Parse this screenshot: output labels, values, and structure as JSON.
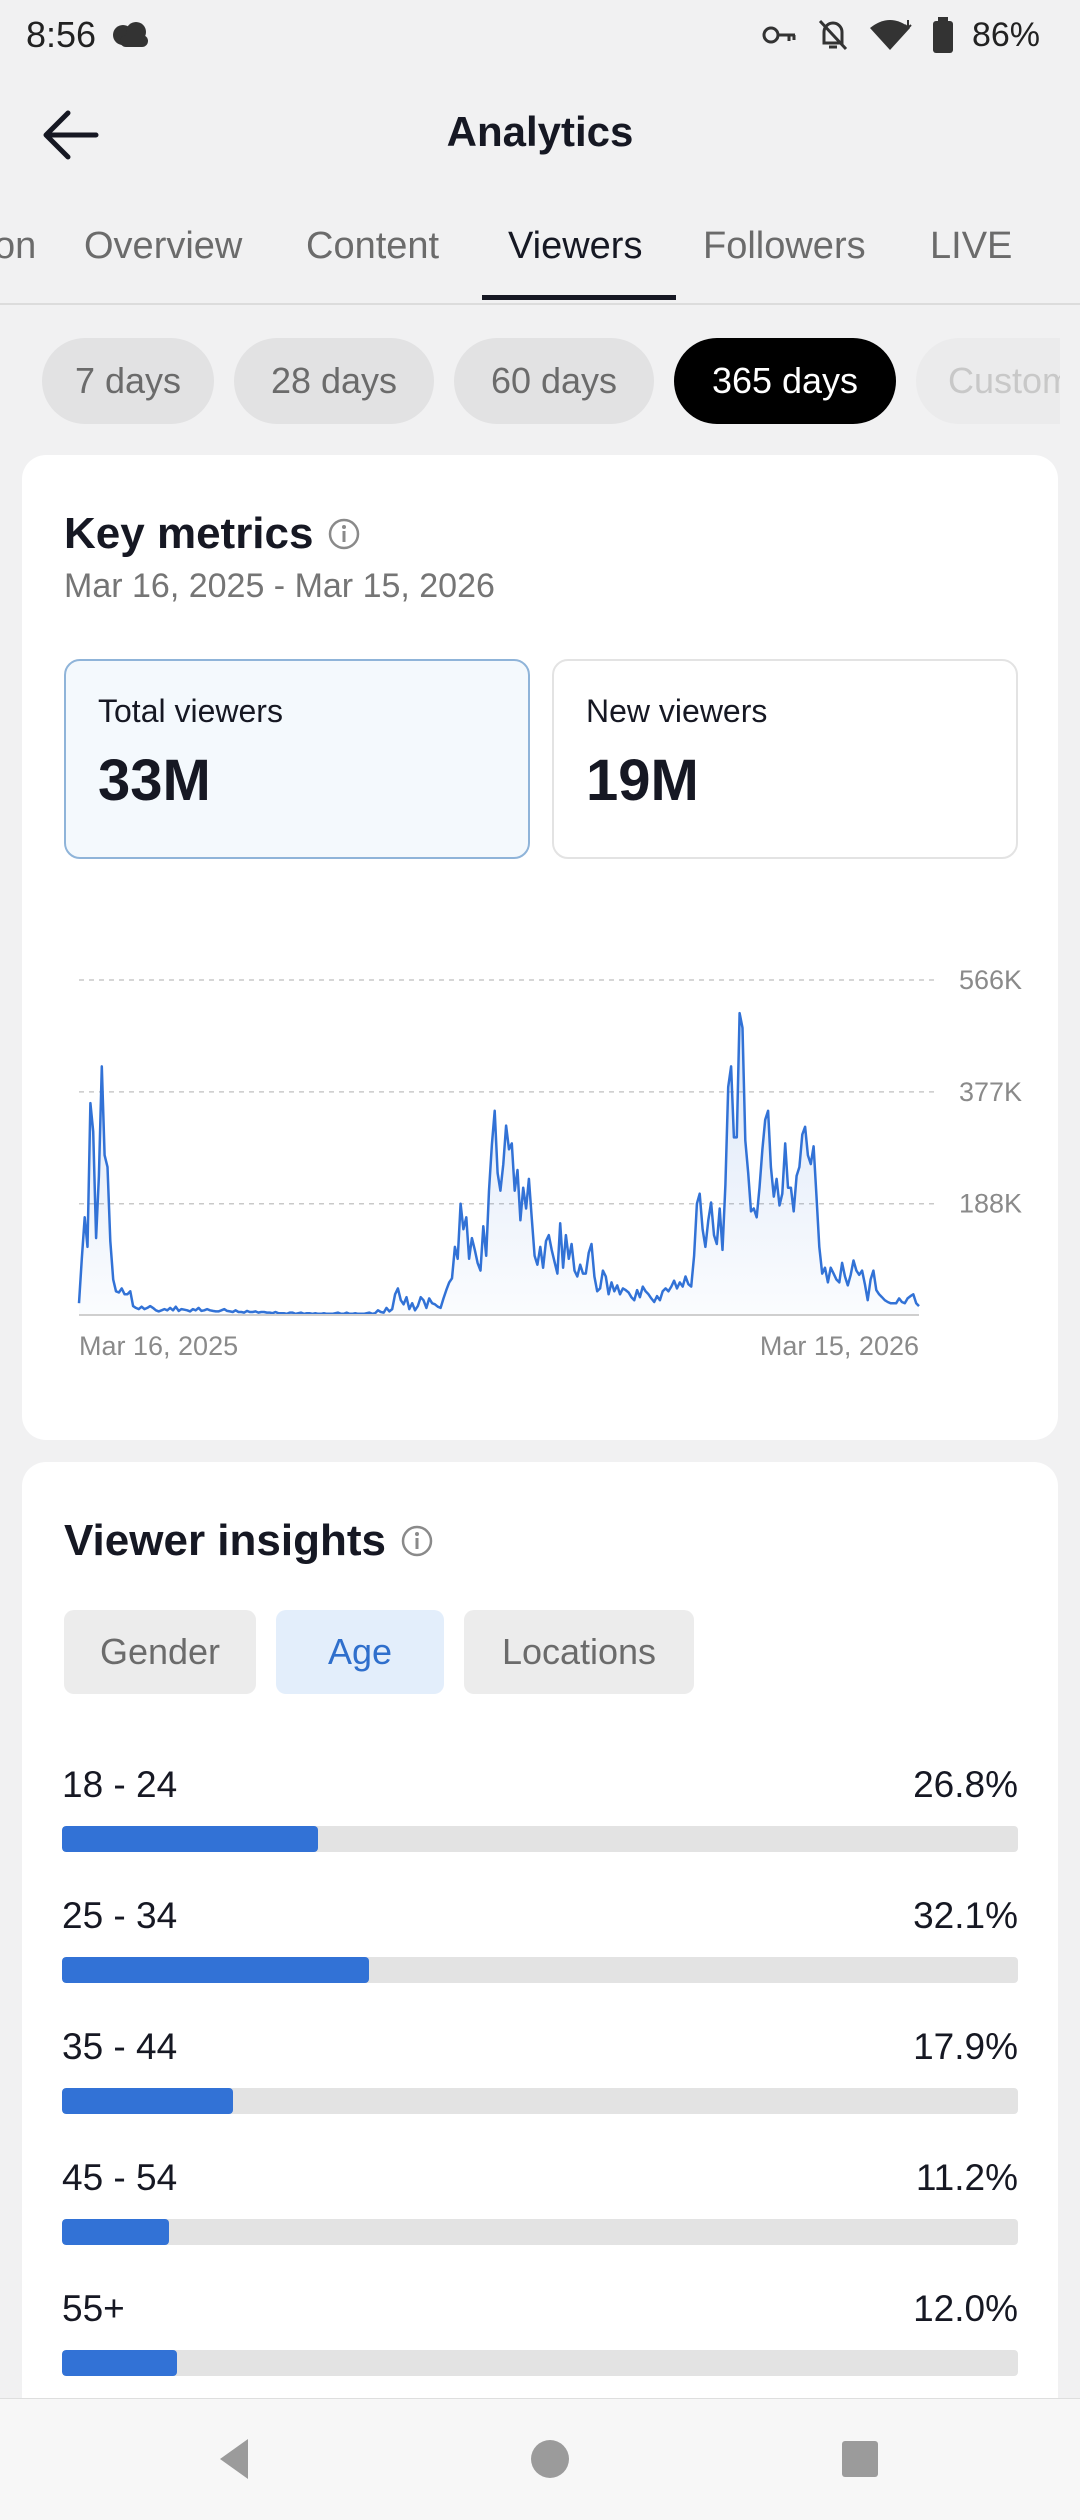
{
  "status_bar": {
    "time": "8:56",
    "battery": "86%",
    "icons": [
      "cloud-sync-icon",
      "key-icon",
      "bell-off-icon",
      "wifi-icon",
      "battery-icon"
    ]
  },
  "header": {
    "title": "Analytics",
    "back_icon": "back-arrow-icon"
  },
  "tabs": [
    {
      "label": "on"
    },
    {
      "label": "Overview"
    },
    {
      "label": "Content"
    },
    {
      "label": "Viewers",
      "active": true
    },
    {
      "label": "Followers"
    },
    {
      "label": "LIVE"
    }
  ],
  "period_chips": [
    {
      "label": "7 days"
    },
    {
      "label": "28 days"
    },
    {
      "label": "60 days"
    },
    {
      "label": "365 days",
      "active": true
    },
    {
      "label": "Custom"
    }
  ],
  "key_metrics": {
    "title": "Key metrics",
    "date_range": "Mar 16, 2025 - Mar 15, 2026",
    "total_viewers": {
      "label": "Total viewers",
      "value": "33M",
      "selected": true
    },
    "new_viewers": {
      "label": "New viewers",
      "value": "19M"
    }
  },
  "chart_data": {
    "type": "area",
    "series": [
      {
        "values": [
          20,
          95,
          165,
          115,
          358,
          310,
          130,
          235,
          420,
          270,
          250,
          125,
          60,
          40,
          38,
          45,
          35,
          35,
          40,
          15,
          12,
          10,
          14,
          10,
          12,
          15,
          12,
          8,
          6,
          8,
          10,
          8,
          12,
          8,
          14,
          7,
          10,
          9,
          8,
          6,
          10,
          8,
          12,
          7,
          8,
          10,
          8,
          7,
          6,
          6,
          8,
          10,
          7,
          6,
          5,
          8,
          5,
          5,
          4,
          7,
          5,
          5,
          6,
          4,
          5,
          5,
          4,
          4,
          3,
          5,
          3,
          3,
          3,
          2,
          4,
          4,
          2,
          3,
          4,
          2,
          3,
          3,
          2,
          3,
          2,
          2,
          3,
          2,
          2,
          2,
          3,
          4,
          2,
          2,
          4,
          2,
          2,
          3,
          2,
          2,
          2,
          3,
          4,
          2,
          3,
          8,
          5,
          4,
          12,
          6,
          10,
          35,
          45,
          25,
          18,
          30,
          10,
          20,
          8,
          15,
          30,
          25,
          12,
          28,
          20,
          18,
          14,
          12,
          28,
          42,
          55,
          62,
          115,
          95,
          188,
          145,
          165,
          95,
          130,
          110,
          88,
          75,
          150,
          100,
          210,
          288,
          345,
          240,
          210,
          255,
          320,
          280,
          290,
          210,
          245,
          160,
          215,
          180,
          230,
          165,
          100,
          85,
          115,
          80,
          125,
          135,
          110,
          90,
          70,
          155,
          80,
          135,
          95,
          120,
          75,
          65,
          85,
          70,
          70,
          105,
          120,
          65,
          40,
          45,
          75,
          65,
          35,
          55,
          40,
          50,
          35,
          45,
          42,
          38,
          30,
          25,
          42,
          30,
          48,
          40,
          35,
          28,
          22,
          32,
          25,
          40,
          45,
          40,
          48,
          58,
          45,
          55,
          48,
          65,
          52,
          48,
          100,
          188,
          205,
          145,
          115,
          160,
          190,
          135,
          120,
          180,
          110,
          220,
          385,
          420,
          300,
          300,
          510,
          485,
          295,
          240,
          175,
          180,
          165,
          215,
          280,
          330,
          345,
          250,
          200,
          230,
          185,
          205,
          290,
          215,
          215,
          175,
          235,
          250,
          305,
          318,
          270,
          255,
          285,
          200,
          115,
          70,
          80,
          55,
          80,
          70,
          60,
          55,
          88,
          65,
          50,
          68,
          92,
          75,
          68,
          75,
          52,
          25,
          60,
          75,
          42,
          35,
          30,
          25,
          22,
          20,
          20,
          20,
          28,
          22,
          20,
          28,
          32,
          35,
          20,
          15
        ]
      }
    ],
    "x_labels": [
      "Mar 16, 2025",
      "Mar 15, 2026"
    ],
    "y_ticks": [
      {
        "value": 566000,
        "label": "566K"
      },
      {
        "value": 377000,
        "label": "377K"
      },
      {
        "value": 188000,
        "label": "188K"
      }
    ],
    "ylim": [
      0,
      566000
    ],
    "y_unit_multiplier": 1000,
    "grid": true,
    "line_color": "#3272d6"
  },
  "viewer_insights": {
    "title": "Viewer insights",
    "tabs": [
      {
        "label": "Gender"
      },
      {
        "label": "Age",
        "active": true
      },
      {
        "label": "Locations"
      }
    ],
    "age_groups": [
      {
        "label": "18 - 24",
        "pct": "26.8%",
        "value": 26.8
      },
      {
        "label": "25 - 34",
        "pct": "32.1%",
        "value": 32.1
      },
      {
        "label": "35 - 44",
        "pct": "17.9%",
        "value": 17.9
      },
      {
        "label": "45 - 54",
        "pct": "11.2%",
        "value": 11.2
      },
      {
        "label": "55+",
        "pct": "12.0%",
        "value": 12.0
      }
    ]
  },
  "colors": {
    "accent": "#3272d6",
    "selected_chip": "#000000",
    "card_bg": "#ffffff",
    "page_bg": "#f1f1f2"
  },
  "nav_bar": {
    "icons": [
      "nav-back-icon",
      "nav-home-icon",
      "nav-recents-icon"
    ]
  }
}
